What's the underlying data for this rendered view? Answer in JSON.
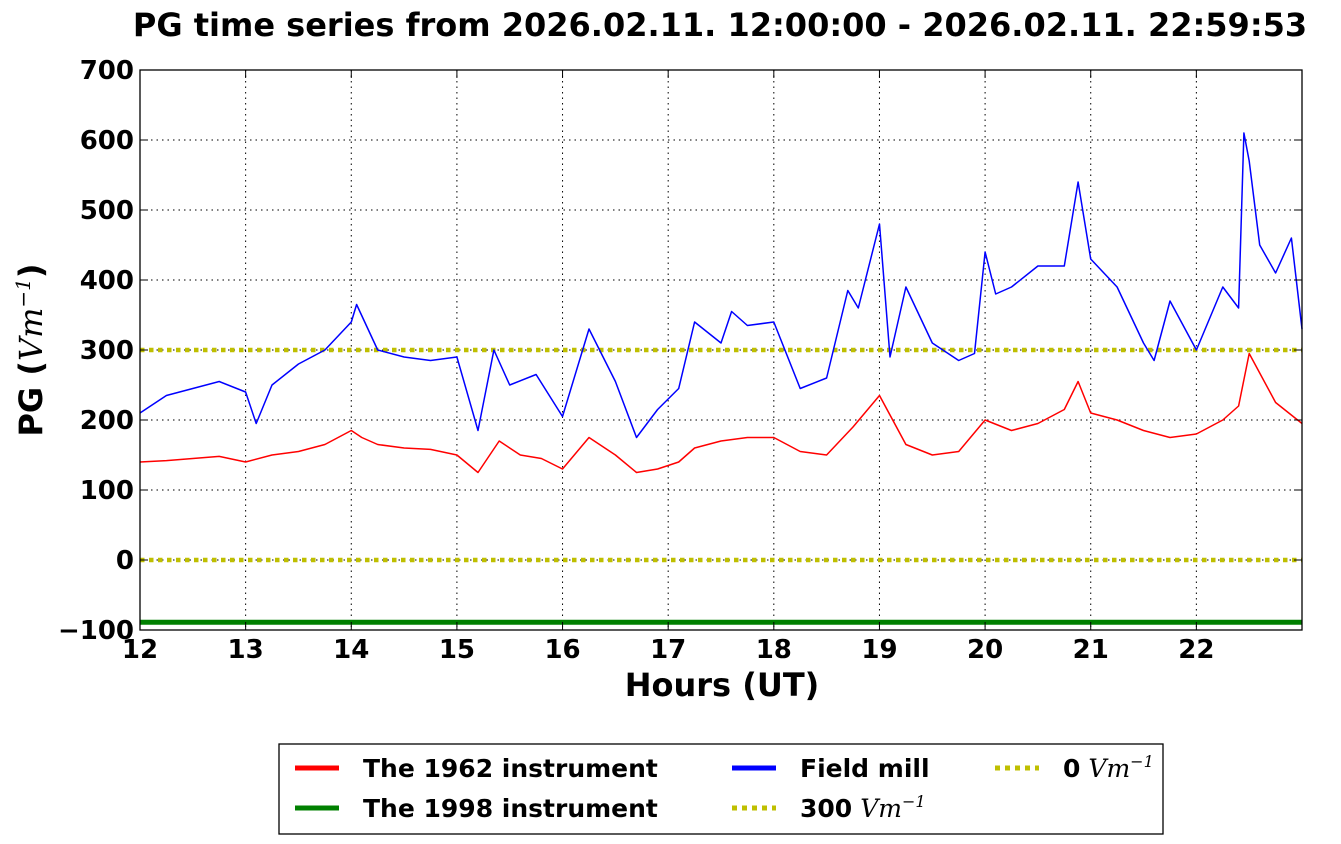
{
  "chart_data": {
    "type": "line",
    "title": "PG time series from 2026.02.11. 12:00:00 - 2026.02.11. 22:59:53",
    "xlabel": "Hours (UT)",
    "ylabel_prefix": "PG (",
    "ylabel_unit": "Vm",
    "ylabel_exp": "−1",
    "ylabel_suffix": ")",
    "xlim": [
      12,
      23
    ],
    "ylim": [
      -100,
      700
    ],
    "xticks": [
      12,
      13,
      14,
      15,
      16,
      17,
      18,
      19,
      20,
      21,
      22
    ],
    "yticks": [
      -100,
      0,
      100,
      200,
      300,
      400,
      500,
      600,
      700
    ],
    "ytick_labels": [
      "−100",
      "0",
      "100",
      "200",
      "300",
      "400",
      "500",
      "600",
      "700"
    ],
    "grid": true,
    "legend_position": "below",
    "series": [
      {
        "name": "The 1962 instrument",
        "color": "#ff0000",
        "style": "solid",
        "x": [
          12.0,
          12.25,
          12.5,
          12.75,
          13.0,
          13.25,
          13.5,
          13.75,
          14.0,
          14.1,
          14.25,
          14.5,
          14.75,
          15.0,
          15.2,
          15.4,
          15.6,
          15.8,
          16.0,
          16.25,
          16.5,
          16.7,
          16.9,
          17.1,
          17.25,
          17.5,
          17.75,
          18.0,
          18.25,
          18.5,
          18.75,
          19.0,
          19.25,
          19.5,
          19.75,
          20.0,
          20.25,
          20.5,
          20.75,
          20.88,
          21.0,
          21.25,
          21.5,
          21.75,
          22.0,
          22.25,
          22.4,
          22.5,
          22.75,
          23.0
        ],
        "y": [
          140,
          142,
          145,
          148,
          140,
          150,
          155,
          165,
          185,
          175,
          165,
          160,
          158,
          150,
          125,
          170,
          150,
          145,
          130,
          175,
          150,
          125,
          130,
          140,
          160,
          170,
          175,
          175,
          155,
          150,
          190,
          235,
          165,
          150,
          155,
          200,
          185,
          195,
          215,
          255,
          210,
          200,
          185,
          175,
          180,
          200,
          220,
          295,
          225,
          195
        ]
      },
      {
        "name": "The 1998 instrument",
        "color": "#008000",
        "style": "solid",
        "x": [
          12.0,
          23.0
        ],
        "y": [
          -89,
          -89
        ]
      },
      {
        "name": "Field mill",
        "color": "#0000ff",
        "style": "solid",
        "x": [
          12.0,
          12.25,
          12.5,
          12.75,
          13.0,
          13.1,
          13.25,
          13.5,
          13.75,
          14.0,
          14.05,
          14.25,
          14.5,
          14.75,
          15.0,
          15.2,
          15.35,
          15.5,
          15.75,
          16.0,
          16.25,
          16.5,
          16.7,
          16.9,
          17.1,
          17.25,
          17.5,
          17.6,
          17.75,
          18.0,
          18.25,
          18.5,
          18.7,
          18.8,
          19.0,
          19.1,
          19.25,
          19.5,
          19.75,
          19.9,
          20.0,
          20.1,
          20.25,
          20.5,
          20.75,
          20.88,
          21.0,
          21.25,
          21.5,
          21.6,
          21.75,
          22.0,
          22.25,
          22.4,
          22.45,
          22.5,
          22.6,
          22.75,
          22.9,
          23.0
        ],
        "y": [
          210,
          235,
          245,
          255,
          240,
          195,
          250,
          280,
          300,
          340,
          365,
          300,
          290,
          285,
          290,
          185,
          300,
          250,
          265,
          205,
          330,
          255,
          175,
          215,
          245,
          340,
          310,
          355,
          335,
          340,
          245,
          260,
          385,
          360,
          480,
          290,
          390,
          310,
          285,
          295,
          440,
          380,
          390,
          420,
          420,
          540,
          430,
          390,
          310,
          285,
          370,
          300,
          390,
          360,
          610,
          570,
          450,
          410,
          460,
          330
        ]
      }
    ],
    "reference_lines": [
      {
        "name": "300 Vm^-1",
        "value": 300,
        "color": "#bfbf00",
        "style": "dotted"
      },
      {
        "name": "0 Vm^-1",
        "value": 0,
        "color": "#bfbf00",
        "style": "dotted"
      }
    ],
    "legend": [
      {
        "text": "The 1962 instrument",
        "color": "#ff0000",
        "style": "solid"
      },
      {
        "text": "Field mill",
        "color": "#0000ff",
        "style": "solid"
      },
      {
        "text": "0",
        "unit": "Vm",
        "exp": "−1",
        "color": "#bfbf00",
        "style": "dotted"
      },
      {
        "text": "The 1998 instrument",
        "color": "#008000",
        "style": "solid"
      },
      {
        "text": "300",
        "unit": "Vm",
        "exp": "−1",
        "color": "#bfbf00",
        "style": "dotted"
      }
    ]
  }
}
